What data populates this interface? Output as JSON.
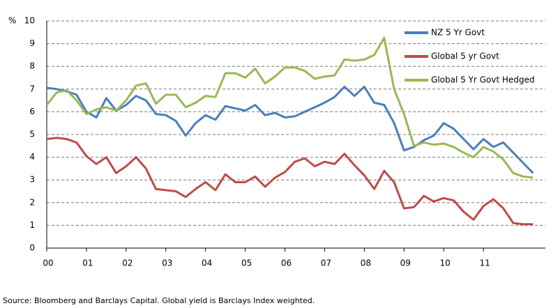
{
  "chart_data": {
    "type": "line",
    "y_label": "%",
    "categories": [
      "00",
      null,
      null,
      null,
      "01",
      null,
      null,
      null,
      "02",
      null,
      null,
      null,
      "03",
      null,
      null,
      null,
      "04",
      null,
      null,
      null,
      "05",
      null,
      null,
      null,
      "06",
      null,
      null,
      null,
      "07",
      null,
      null,
      null,
      "08",
      null,
      null,
      null,
      "09",
      null,
      null,
      null,
      "10",
      null,
      null,
      null,
      "11",
      null,
      null,
      null,
      null,
      null
    ],
    "series": [
      {
        "name": "NZ 5 Yr Govt",
        "color": "#4a7ebb",
        "values": [
          7.05,
          7.0,
          6.9,
          6.75,
          6.0,
          5.75,
          6.6,
          6.05,
          6.3,
          6.7,
          6.5,
          5.9,
          5.85,
          5.6,
          4.95,
          5.5,
          5.85,
          5.65,
          6.25,
          6.15,
          6.05,
          6.3,
          5.85,
          5.95,
          5.75,
          5.8,
          6.0,
          6.2,
          6.4,
          6.65,
          7.1,
          6.7,
          7.1,
          6.4,
          6.3,
          5.5,
          4.3,
          4.45,
          4.75,
          4.95,
          5.5,
          5.25,
          4.8,
          4.35,
          4.8,
          4.45,
          4.65,
          4.2,
          3.75,
          3.3
        ]
      },
      {
        "name": "Global 5 yr Govt",
        "color": "#be4b48",
        "values": [
          4.8,
          4.85,
          4.8,
          4.65,
          4.05,
          3.7,
          4.0,
          3.3,
          3.6,
          4.0,
          3.5,
          2.6,
          2.55,
          2.5,
          2.25,
          2.6,
          2.9,
          2.55,
          3.25,
          2.9,
          2.9,
          3.15,
          2.7,
          3.1,
          3.35,
          3.8,
          3.95,
          3.6,
          3.8,
          3.7,
          4.15,
          3.65,
          3.2,
          2.6,
          3.4,
          2.9,
          1.75,
          1.8,
          2.3,
          2.05,
          2.2,
          2.1,
          1.6,
          1.25,
          1.85,
          2.15,
          1.75,
          1.1,
          1.05,
          1.05
        ]
      },
      {
        "name": "Global 5 Yr Govt Hedged",
        "color": "#98b954",
        "values": [
          6.3,
          6.85,
          6.95,
          6.5,
          5.9,
          6.1,
          6.2,
          6.05,
          6.5,
          7.15,
          7.25,
          6.35,
          6.75,
          6.75,
          6.2,
          6.4,
          6.7,
          6.65,
          7.7,
          7.7,
          7.5,
          7.9,
          7.25,
          7.55,
          7.95,
          7.95,
          7.8,
          7.45,
          7.55,
          7.6,
          8.3,
          8.25,
          8.3,
          8.5,
          9.25,
          7.0,
          5.9,
          4.5,
          4.65,
          4.55,
          4.6,
          4.45,
          4.2,
          4.0,
          4.45,
          4.25,
          3.9,
          3.3,
          3.15,
          3.1
        ]
      }
    ],
    "ylim": [
      0,
      10
    ],
    "yticks": [
      0,
      1,
      2,
      3,
      4,
      5,
      6,
      7,
      8,
      9,
      10
    ],
    "grid": true,
    "legend": "top-right",
    "source": "Source: Bloomberg and Barclays Capital.  Global yield is Barclays Index weighted."
  }
}
